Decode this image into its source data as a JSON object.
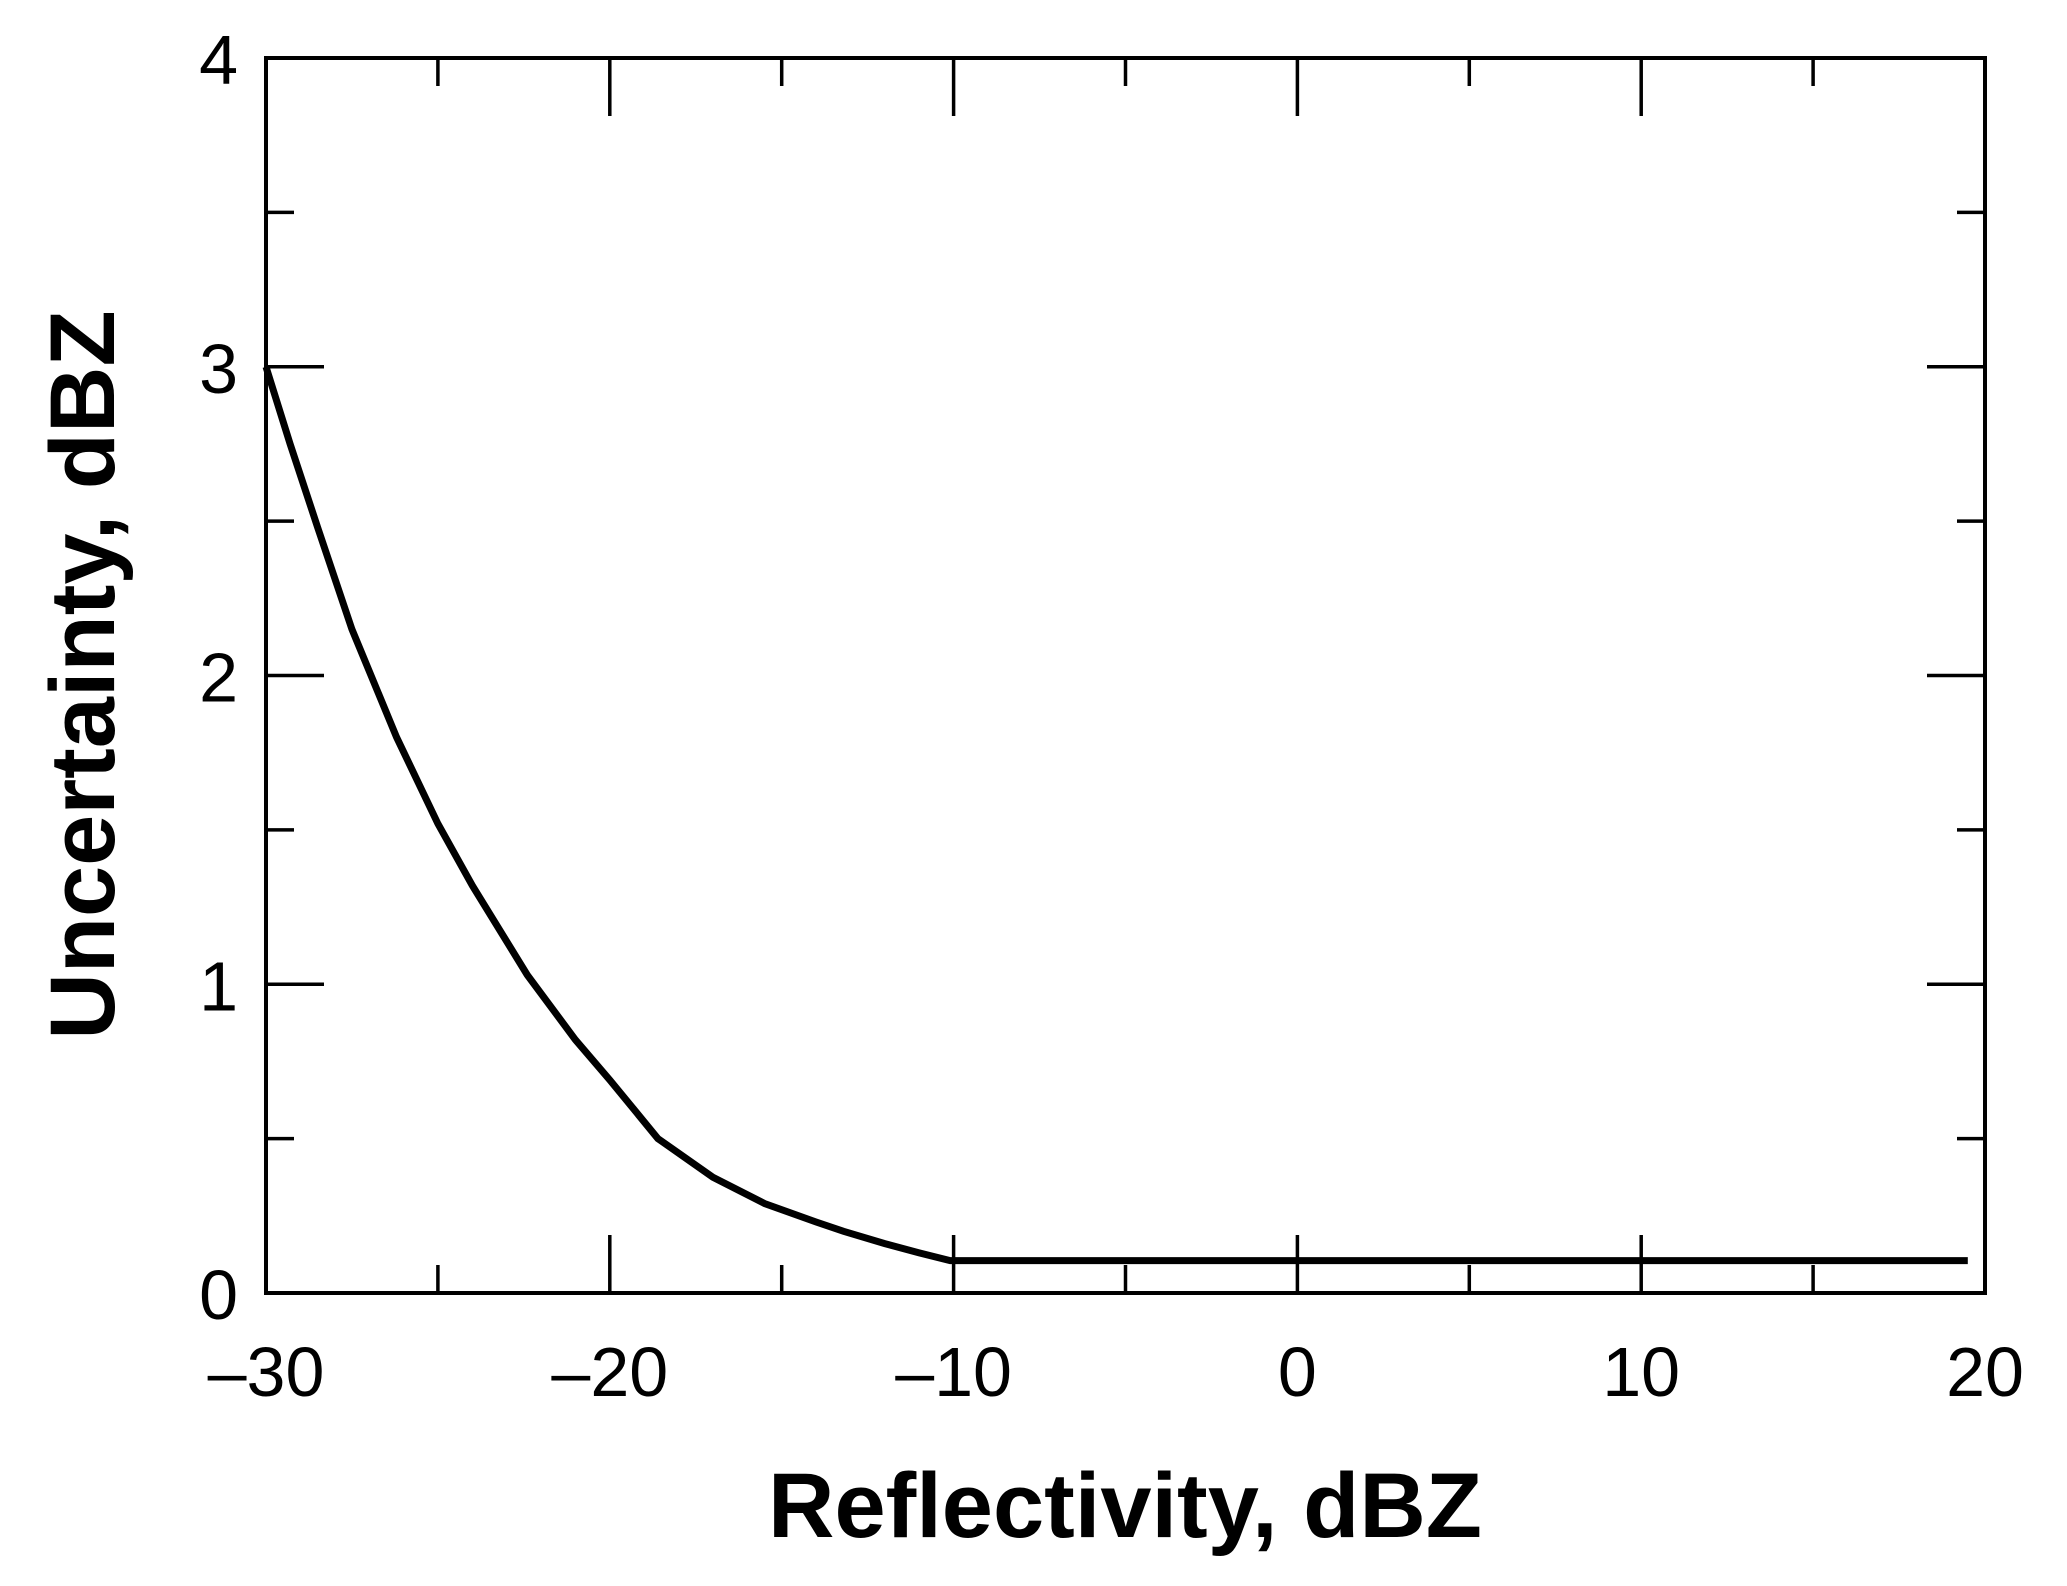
{
  "chart_data": {
    "type": "line",
    "title": "",
    "xlabel": "Reflectivity, dBZ",
    "ylabel": "Uncertainty, dBZ",
    "xlim": [
      -30,
      20
    ],
    "ylim": [
      0,
      4
    ],
    "xticks": [
      -30,
      -20,
      -10,
      0,
      10,
      20
    ],
    "yticks": [
      0,
      1,
      2,
      3,
      4
    ],
    "x_minor_step": 5,
    "y_minor_step": 0.5,
    "grid": false,
    "line_color": "#000000",
    "series": [
      {
        "x": [
          -30,
          -29.3,
          -28.5,
          -27.5,
          -26.2,
          -25,
          -24,
          -22.4,
          -21,
          -20,
          -18.6,
          -17,
          -15.5,
          -14,
          -13.2,
          -12,
          -11,
          -10.1,
          -5,
          0,
          5,
          10,
          15,
          19.5
        ],
        "y": [
          3.0,
          2.75,
          2.48,
          2.15,
          1.8,
          1.52,
          1.32,
          1.03,
          0.82,
          0.69,
          0.5,
          0.375,
          0.29,
          0.23,
          0.2,
          0.16,
          0.13,
          0.105,
          0.105,
          0.105,
          0.105,
          0.105,
          0.105,
          0.105
        ]
      }
    ]
  }
}
